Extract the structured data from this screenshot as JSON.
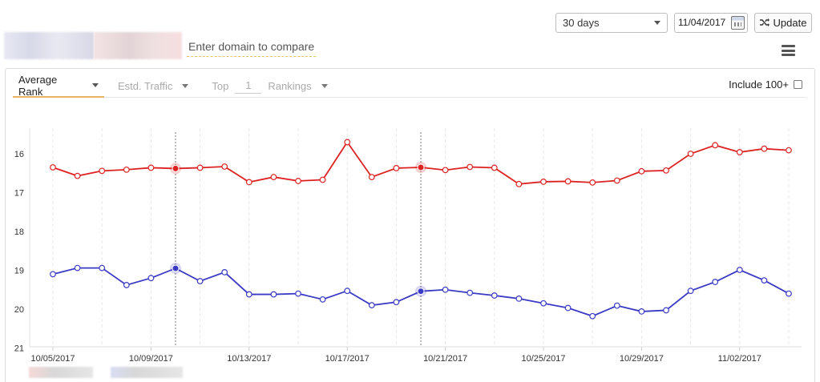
{
  "controls": {
    "period": "30 days",
    "date": "11/04/2017",
    "update_label": "Update"
  },
  "compare": {
    "placeholder": "Enter domain to compare"
  },
  "tabs": {
    "average_rank": "Average Rank",
    "traffic": "Estd. Traffic",
    "top_label": "Top",
    "top_value": "1",
    "rankings": "Rankings",
    "include_100": "Include 100+"
  },
  "colors": {
    "series_a": "#dd2222",
    "series_b": "#3a3ac4",
    "accent": "#e9b463"
  },
  "chart_data": {
    "type": "line",
    "x": [
      "10/05/2017",
      "10/06/2017",
      "10/07/2017",
      "10/08/2017",
      "10/09/2017",
      "10/10/2017",
      "10/11/2017",
      "10/12/2017",
      "10/13/2017",
      "10/14/2017",
      "10/15/2017",
      "10/16/2017",
      "10/17/2017",
      "10/18/2017",
      "10/19/2017",
      "10/20/2017",
      "10/21/2017",
      "10/22/2017",
      "10/23/2017",
      "10/24/2017",
      "10/25/2017",
      "10/26/2017",
      "10/27/2017",
      "10/28/2017",
      "10/29/2017",
      "10/30/2017",
      "10/31/2017",
      "11/01/2017",
      "11/02/2017",
      "11/03/2017",
      "11/04/2017"
    ],
    "x_tick_labels": [
      "10/05/2017",
      "10/09/2017",
      "10/13/2017",
      "10/17/2017",
      "10/21/2017",
      "10/25/2017",
      "10/29/2017",
      "11/02/2017"
    ],
    "y_ticks": [
      16,
      17,
      18,
      19,
      20,
      21
    ],
    "ylim": [
      21,
      15.3
    ],
    "y_inverted": true,
    "grid": "vertical dashed",
    "series": [
      {
        "values": [
          16.35,
          16.57,
          16.44,
          16.41,
          16.36,
          16.38,
          16.36,
          16.33,
          16.73,
          16.6,
          16.7,
          16.67,
          15.7,
          16.6,
          16.37,
          16.35,
          16.42,
          16.34,
          16.36,
          16.78,
          16.72,
          16.71,
          16.74,
          16.69,
          16.45,
          16.43,
          16.0,
          15.78,
          15.96,
          15.87,
          15.91
        ]
      },
      {
        "values": [
          19.1,
          18.94,
          18.94,
          19.38,
          19.2,
          18.95,
          19.28,
          19.05,
          19.62,
          19.62,
          19.6,
          19.75,
          19.53,
          19.9,
          19.82,
          19.54,
          19.5,
          19.58,
          19.65,
          19.73,
          19.85,
          19.97,
          20.18,
          19.91,
          20.06,
          20.03,
          19.53,
          19.3,
          18.99,
          19.26,
          19.6
        ]
      }
    ]
  }
}
